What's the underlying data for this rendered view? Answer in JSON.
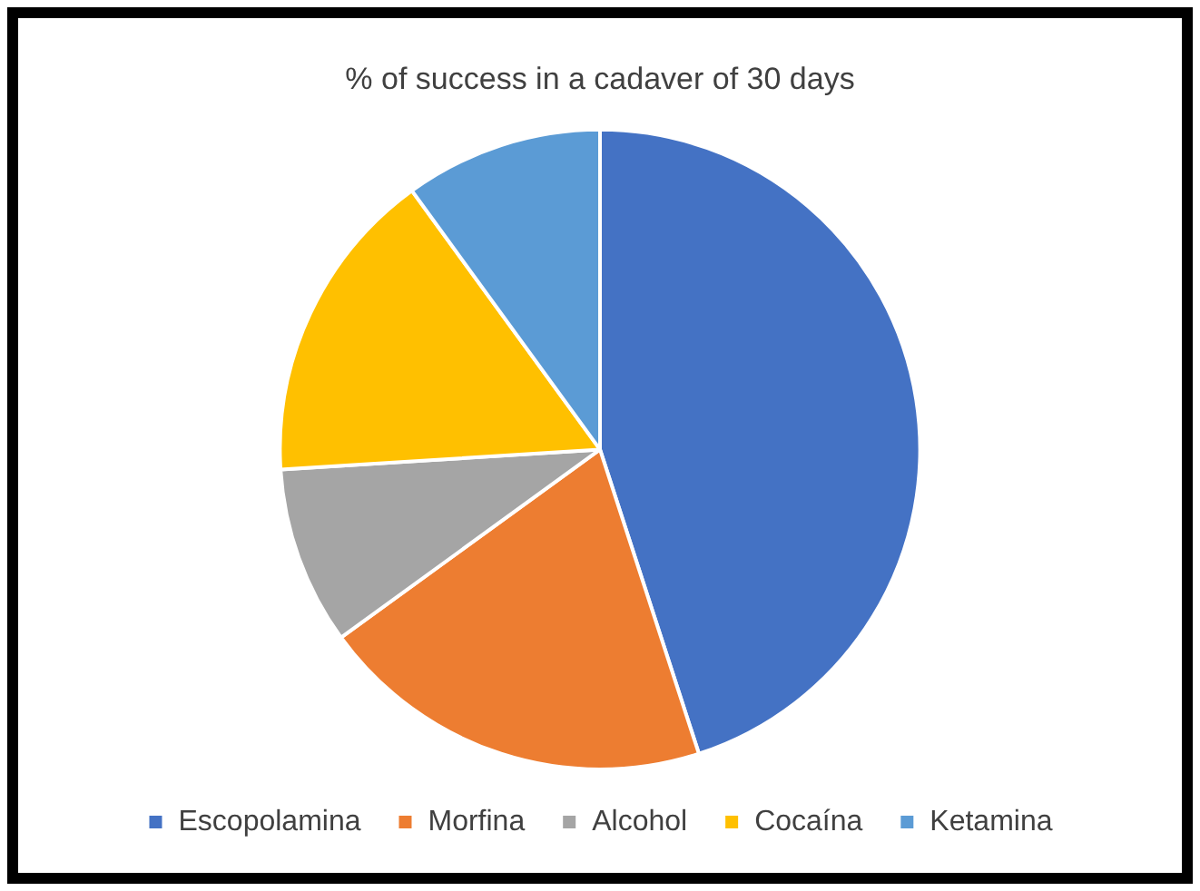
{
  "chart_data": {
    "type": "pie",
    "title": "% of success in a cadaver of 30 days",
    "categories": [
      "Escopolamina",
      "Morfina",
      "Alcohol",
      "Cocaína",
      "Ketamina"
    ],
    "values": [
      45,
      20,
      9,
      16,
      10
    ],
    "colors": [
      "#4472c4",
      "#ed7d31",
      "#a5a5a5",
      "#ffc000",
      "#5b9bd5"
    ],
    "legend": "bottom"
  }
}
